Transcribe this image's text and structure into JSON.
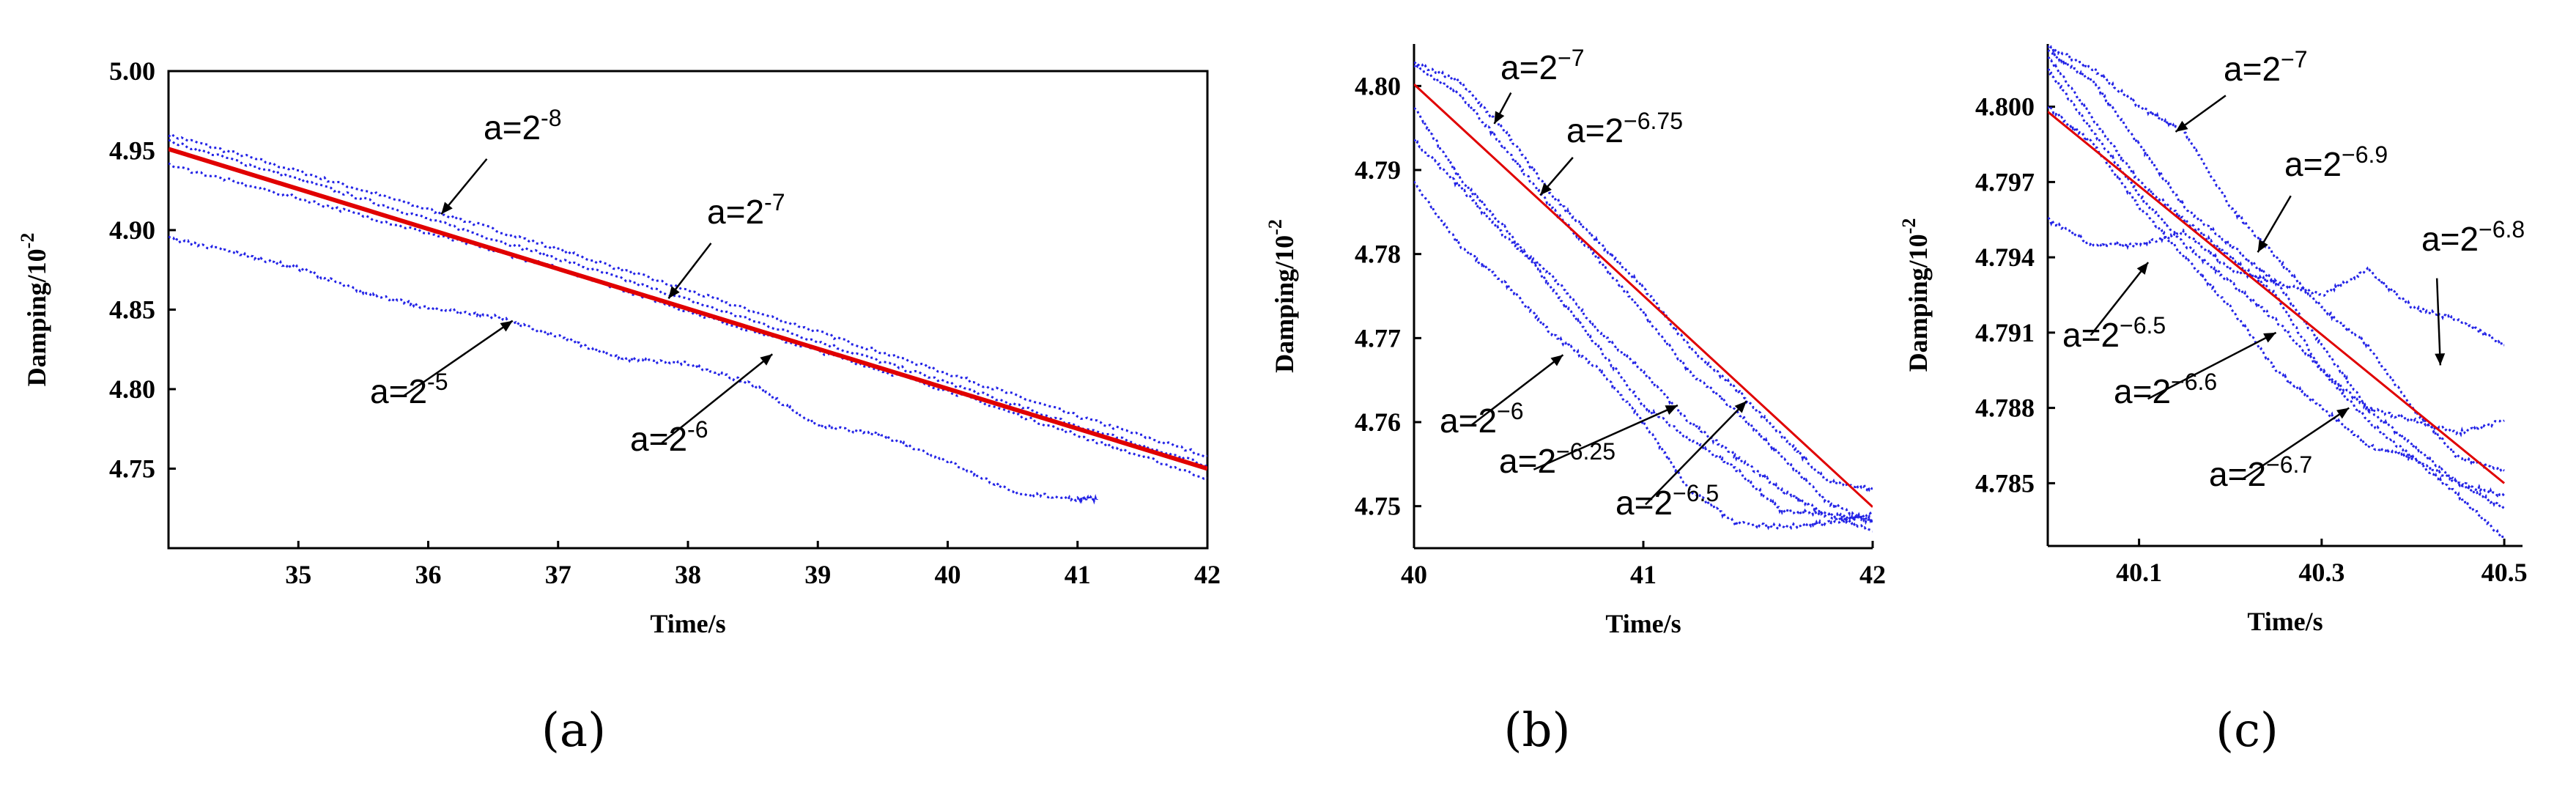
{
  "colors": {
    "noisy": "#2323e6",
    "fit": "#e00000",
    "axis": "#000000"
  },
  "chart_data": [
    {
      "id": "a",
      "panel_label": "(a)",
      "type": "line",
      "xlabel": "Time/s",
      "ylabel": "Damping/10",
      "ylabel_sup": "-2",
      "xlim": [
        34,
        42
      ],
      "ylim": [
        4.7,
        5.0
      ],
      "xticks": [
        "35",
        "36",
        "37",
        "38",
        "39",
        "40",
        "41",
        "42"
      ],
      "yticks": [
        "4.75",
        "4.80",
        "4.85",
        "4.90",
        "4.95",
        "5.00"
      ],
      "fit": {
        "name": "fit",
        "x": [
          34,
          42
        ],
        "y": [
          4.951,
          4.75
        ],
        "width": 6
      },
      "series": [
        {
          "name": "a=2^-8",
          "x": [
            34,
            35,
            36,
            37,
            38,
            39,
            40,
            41,
            42
          ],
          "y": [
            4.96,
            4.937,
            4.913,
            4.888,
            4.862,
            4.836,
            4.81,
            4.783,
            4.758
          ]
        },
        {
          "name": "a=2^-7",
          "x": [
            34,
            35,
            36,
            37,
            38,
            39,
            40,
            41,
            42
          ],
          "y": [
            4.956,
            4.932,
            4.907,
            4.882,
            4.856,
            4.83,
            4.804,
            4.777,
            4.752
          ]
        },
        {
          "name": "a=2^-6",
          "x": [
            34,
            35,
            36,
            37,
            38,
            39,
            40,
            41,
            42
          ],
          "y": [
            4.941,
            4.92,
            4.898,
            4.876,
            4.849,
            4.824,
            4.799,
            4.771,
            4.744
          ]
        },
        {
          "name": "a=2^-5",
          "x": [
            34,
            34.5,
            35,
            35.5,
            36,
            36.5,
            37,
            37.5,
            38,
            38.5,
            39,
            39.5,
            40,
            40.5,
            41,
            41.15
          ],
          "y": [
            4.895,
            4.886,
            4.876,
            4.861,
            4.851,
            4.846,
            4.833,
            4.819,
            4.816,
            4.803,
            4.777,
            4.771,
            4.755,
            4.735,
            4.731,
            4.731
          ]
        }
      ],
      "annotations": [
        {
          "base": "a=2",
          "exp": "-8",
          "target": [
            36.1,
            4.91
          ]
        },
        {
          "base": "a=2",
          "exp": "-7",
          "target": [
            37.85,
            4.857
          ]
        },
        {
          "base": "a=2",
          "exp": "-5",
          "target": [
            36.65,
            4.843
          ]
        },
        {
          "base": "a=2",
          "exp": "-6",
          "target": [
            38.65,
            4.822
          ]
        }
      ]
    },
    {
      "id": "b",
      "panel_label": "(b)",
      "type": "line",
      "xlabel": "Time/s",
      "ylabel": "Damping/10",
      "ylabel_sup": "-2",
      "xlim": [
        40,
        42
      ],
      "ylim": [
        4.745,
        4.805
      ],
      "xticks": [
        "40",
        "41",
        "42"
      ],
      "yticks": [
        "4.75",
        "4.76",
        "4.77",
        "4.78",
        "4.79",
        "4.80"
      ],
      "fit": {
        "name": "fit",
        "x": [
          40,
          42
        ],
        "y": [
          4.8002,
          4.7499
        ],
        "width": 3
      },
      "series": [
        {
          "name": "a=2^-7",
          "x": [
            40,
            40.2,
            40.4,
            40.6,
            40.8,
            41,
            41.2,
            41.4,
            41.6,
            41.8,
            42
          ],
          "y": [
            4.8028,
            4.8005,
            4.7945,
            4.787,
            4.7815,
            4.776,
            4.769,
            4.764,
            4.7585,
            4.753,
            4.752
          ]
        },
        {
          "name": "a=2^-6.75",
          "x": [
            40,
            40.2,
            40.4,
            40.6,
            40.8,
            41,
            41.2,
            41.4,
            41.6,
            41.8,
            42
          ],
          "y": [
            4.8025,
            4.799,
            4.7925,
            4.7855,
            4.7795,
            4.773,
            4.766,
            4.7615,
            4.756,
            4.7505,
            4.748
          ]
        },
        {
          "name": "a=2^-6.5",
          "x": [
            40,
            40.2,
            40.4,
            40.6,
            40.8,
            41,
            41.2,
            41.4,
            41.6,
            41.8,
            42
          ],
          "y": [
            4.7935,
            4.788,
            4.782,
            4.7775,
            4.771,
            4.766,
            4.76,
            4.756,
            4.752,
            4.749,
            4.747
          ]
        },
        {
          "name": "a=2^-6.25",
          "x": [
            40,
            40.2,
            40.4,
            40.6,
            40.8,
            41,
            41.2,
            41.4,
            41.6,
            41.8,
            42
          ],
          "y": [
            4.7975,
            4.789,
            4.783,
            4.776,
            4.769,
            4.762,
            4.758,
            4.7545,
            4.7495,
            4.749,
            4.7485
          ]
        },
        {
          "name": "a=2^-6",
          "x": [
            40,
            40.2,
            40.4,
            40.6,
            40.8,
            41,
            41.2,
            41.4,
            41.6,
            41.8,
            42
          ],
          "y": [
            4.7885,
            4.781,
            4.7765,
            4.7705,
            4.7665,
            4.76,
            4.752,
            4.748,
            4.7475,
            4.748,
            4.749
          ]
        }
      ],
      "annotations": [
        {
          "base": "a=2",
          "exp": "−7",
          "target": [
            40.35,
            4.7955
          ]
        },
        {
          "base": "a=2",
          "exp": "−6.75",
          "target": [
            40.55,
            4.787
          ]
        },
        {
          "base": "a=2",
          "exp": "−6",
          "target": [
            40.65,
            4.768
          ]
        },
        {
          "base": "a=2",
          "exp": "−6.25",
          "target": [
            41.15,
            4.762
          ]
        },
        {
          "base": "a=2",
          "exp": "−6.5",
          "target": [
            41.45,
            4.7625
          ]
        }
      ]
    },
    {
      "id": "c",
      "panel_label": "(c)",
      "type": "line",
      "xlabel": "Time/s",
      "ylabel": "Damping/10",
      "ylabel_sup": "-2",
      "xlim": [
        40,
        40.52
      ],
      "ylim": [
        4.7825,
        4.8025
      ],
      "xticks": [
        "40.1",
        "40.3",
        "40.5"
      ],
      "yticks": [
        "4.785",
        "4.788",
        "4.791",
        "4.794",
        "4.797",
        "4.800"
      ],
      "fit": {
        "name": "fit",
        "x": [
          40,
          40.5
        ],
        "y": [
          4.7998,
          4.785
        ],
        "width": 3
      },
      "series": [
        {
          "name": "a=2^-7",
          "x": [
            40,
            40.05,
            40.1,
            40.15,
            40.2,
            40.25,
            40.3,
            40.35,
            40.4,
            40.45,
            40.5
          ],
          "y": [
            4.8024,
            4.8015,
            4.8,
            4.799,
            4.796,
            4.794,
            4.792,
            4.7905,
            4.788,
            4.786,
            4.7855
          ]
        },
        {
          "name": "a=2^-6.9",
          "x": [
            40,
            40.05,
            40.1,
            40.15,
            40.2,
            40.25,
            40.3,
            40.35,
            40.4,
            40.45,
            40.5
          ],
          "y": [
            4.8022,
            4.801,
            4.7985,
            4.796,
            4.7945,
            4.793,
            4.7905,
            4.788,
            4.7865,
            4.785,
            4.7845
          ]
        },
        {
          "name": "a=2^-6.8",
          "x": [
            40,
            40.05,
            40.1,
            40.15,
            40.2,
            40.25,
            40.3,
            40.35,
            40.4,
            40.45,
            40.5
          ],
          "y": [
            4.802,
            4.7995,
            4.797,
            4.7955,
            4.794,
            4.7925,
            4.7895,
            4.788,
            4.7875,
            4.787,
            4.7875
          ]
        },
        {
          "name": "a=2^-6.7",
          "x": [
            40,
            40.05,
            40.1,
            40.15,
            40.2,
            40.25,
            40.3,
            40.35,
            40.4,
            40.45,
            40.5
          ],
          "y": [
            4.8015,
            4.799,
            4.7965,
            4.7945,
            4.793,
            4.7915,
            4.7895,
            4.7875,
            4.786,
            4.785,
            4.784
          ]
        },
        {
          "name": "a=2^-6.6",
          "x": [
            40,
            40.05,
            40.1,
            40.15,
            40.2,
            40.25,
            40.3,
            40.35,
            40.4,
            40.45,
            40.5
          ],
          "y": [
            4.8,
            4.7985,
            4.796,
            4.794,
            4.792,
            4.7895,
            4.788,
            4.7865,
            4.786,
            4.7845,
            4.7828
          ]
        },
        {
          "name": "a=2^-6.5",
          "x": [
            40,
            40.05,
            40.1,
            40.15,
            40.2,
            40.25,
            40.3,
            40.35,
            40.4,
            40.45,
            40.5
          ],
          "y": [
            4.7955,
            4.7945,
            4.7945,
            4.795,
            4.7935,
            4.793,
            4.7925,
            4.7935,
            4.792,
            4.7915,
            4.7905
          ]
        }
      ],
      "annotations": [
        {
          "base": "a=2",
          "exp": "−7",
          "target": [
            40.14,
            4.799
          ]
        },
        {
          "base": "a=2",
          "exp": "−6.9",
          "target": [
            40.23,
            4.7942
          ]
        },
        {
          "base": "a=2",
          "exp": "−6.8",
          "target": [
            40.43,
            4.7897
          ]
        },
        {
          "base": "a=2",
          "exp": "−6.5",
          "target": [
            40.11,
            4.7938
          ]
        },
        {
          "base": "a=2",
          "exp": "−6.6",
          "target": [
            40.25,
            4.791
          ]
        },
        {
          "base": "a=2",
          "exp": "−6.7",
          "target": [
            40.33,
            4.788
          ]
        }
      ]
    }
  ]
}
